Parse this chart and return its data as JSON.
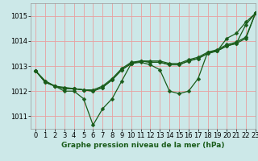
{
  "background_color": "#cce8e8",
  "grid_color": "#e8a0a0",
  "line_color": "#1a5c1a",
  "title": "Graphe pression niveau de la mer (hPa)",
  "xlim": [
    -0.5,
    23
  ],
  "ylim": [
    1010.5,
    1015.5
  ],
  "yticks": [
    1011,
    1012,
    1013,
    1014,
    1015
  ],
  "xticks": [
    0,
    1,
    2,
    3,
    4,
    5,
    6,
    7,
    8,
    9,
    10,
    11,
    12,
    13,
    14,
    15,
    16,
    17,
    18,
    19,
    20,
    21,
    22,
    23
  ],
  "series": [
    [
      1012.8,
      1012.4,
      1012.2,
      1012.0,
      1012.0,
      1011.7,
      1010.65,
      1011.3,
      1011.7,
      1012.4,
      1013.1,
      1013.15,
      1013.05,
      1012.85,
      1012.0,
      1011.9,
      1012.0,
      1012.5,
      1013.55,
      1013.6,
      1014.1,
      1014.3,
      1014.75,
      1015.1
    ],
    [
      1012.8,
      1012.4,
      1012.2,
      1012.15,
      1012.1,
      1012.05,
      1012.05,
      1012.2,
      1012.5,
      1012.9,
      1013.15,
      1013.2,
      1013.2,
      1013.2,
      1013.1,
      1013.1,
      1013.25,
      1013.35,
      1013.55,
      1013.65,
      1013.85,
      1013.95,
      1014.15,
      1015.1
    ],
    [
      1012.8,
      1012.35,
      1012.2,
      1012.1,
      1012.1,
      1012.05,
      1012.0,
      1012.15,
      1012.45,
      1012.85,
      1013.1,
      1013.2,
      1013.15,
      1013.15,
      1013.05,
      1013.05,
      1013.2,
      1013.3,
      1013.5,
      1013.6,
      1013.8,
      1013.9,
      1014.65,
      1015.1
    ],
    [
      1012.8,
      1012.35,
      1012.2,
      1012.1,
      1012.1,
      1012.05,
      1012.0,
      1012.15,
      1012.45,
      1012.85,
      1013.1,
      1013.2,
      1013.15,
      1013.15,
      1013.05,
      1013.05,
      1013.2,
      1013.3,
      1013.5,
      1013.6,
      1013.8,
      1013.9,
      1014.1,
      1015.1
    ]
  ],
  "marker": "D",
  "marker_size": 2.5,
  "line_width": 0.9,
  "tick_fontsize": 6,
  "title_fontsize": 6.5
}
